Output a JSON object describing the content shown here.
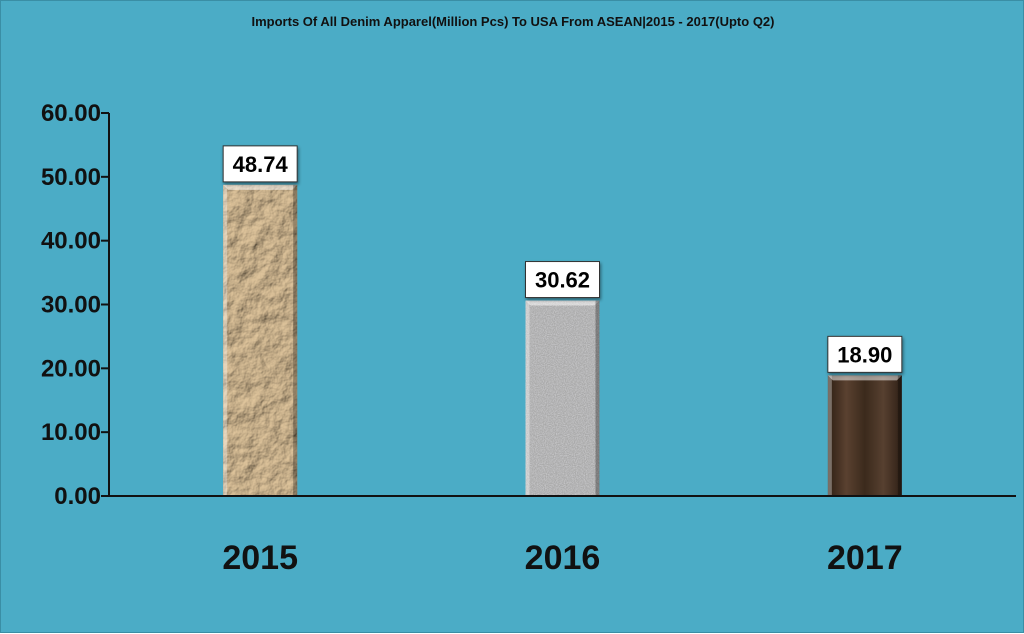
{
  "chart_data": {
    "type": "bar",
    "title": "Imports Of All Denim Apparel(Million Pcs) To USA From ASEAN|2015 - 2017(Upto Q2)",
    "xlabel": "",
    "ylabel": "",
    "categories": [
      "2015",
      "2016",
      "2017"
    ],
    "values": [
      48.74,
      30.62,
      18.9
    ],
    "value_labels": [
      "48.74",
      "30.62",
      "18.90"
    ],
    "ylim": [
      0,
      60
    ],
    "yticks": [
      "0.00",
      "10.00",
      "20.00",
      "30.00",
      "40.00",
      "50.00",
      "60.00"
    ],
    "grid": false,
    "legend": "none",
    "bar_textures": [
      "crumpled-paper",
      "granite",
      "dark-wood"
    ]
  },
  "colors": {
    "background": "#4bacc6",
    "axis": "#111111",
    "bar_2015": "#a07a50",
    "bar_2016": "#a9a9a9",
    "bar_2017": "#4a3424",
    "label_box": "#ffffff"
  }
}
